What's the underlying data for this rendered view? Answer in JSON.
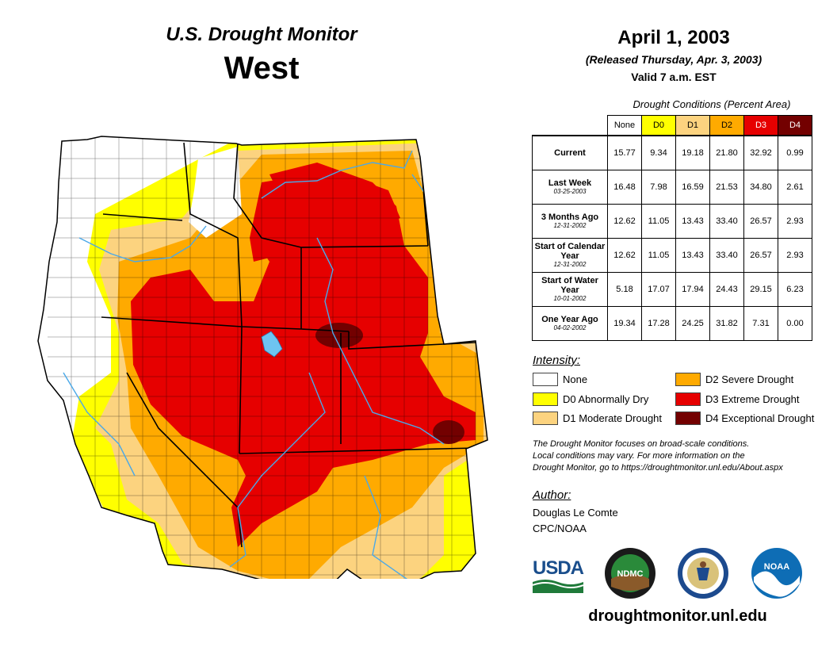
{
  "header": {
    "monitor_title": "U.S. Drought Monitor",
    "region": "West",
    "date": "April 1, 2003",
    "released": "(Released Thursday, Apr. 3, 2003)",
    "valid": "Valid 7 a.m. EST"
  },
  "table": {
    "title": "Drought Conditions (Percent Area)",
    "columns": [
      "None",
      "D0",
      "D1",
      "D2",
      "D3",
      "D4"
    ],
    "column_colors": [
      "#ffffff",
      "#ffff00",
      "#fcd37f",
      "#ffaa00",
      "#e60000",
      "#730000"
    ],
    "rows": [
      {
        "label": "Current",
        "date": "",
        "values": [
          "15.77",
          "9.34",
          "19.18",
          "21.80",
          "32.92",
          "0.99"
        ]
      },
      {
        "label": "Last Week",
        "date": "03-25-2003",
        "values": [
          "16.48",
          "7.98",
          "16.59",
          "21.53",
          "34.80",
          "2.61"
        ]
      },
      {
        "label": "3 Months Ago",
        "date": "12-31-2002",
        "values": [
          "12.62",
          "11.05",
          "13.43",
          "33.40",
          "26.57",
          "2.93"
        ]
      },
      {
        "label": "Start of Calendar Year",
        "date": "12-31-2002",
        "values": [
          "12.62",
          "11.05",
          "13.43",
          "33.40",
          "26.57",
          "2.93"
        ]
      },
      {
        "label": "Start of Water Year",
        "date": "10-01-2002",
        "values": [
          "5.18",
          "17.07",
          "17.94",
          "24.43",
          "29.15",
          "6.23"
        ]
      },
      {
        "label": "One Year Ago",
        "date": "04-02-2002",
        "values": [
          "19.34",
          "17.28",
          "24.25",
          "31.82",
          "7.31",
          "0.00"
        ]
      }
    ]
  },
  "legend": {
    "title": "Intensity:",
    "items": [
      {
        "label": "None",
        "color": "#ffffff"
      },
      {
        "label": "D0 Abnormally Dry",
        "color": "#ffff00"
      },
      {
        "label": "D1 Moderate Drought",
        "color": "#fcd37f"
      },
      {
        "label": "D2 Severe Drought",
        "color": "#ffaa00"
      },
      {
        "label": "D3 Extreme Drought",
        "color": "#e60000"
      },
      {
        "label": "D4 Exceptional Drought",
        "color": "#730000"
      }
    ]
  },
  "note": {
    "line1": "The Drought Monitor focuses on broad-scale conditions.",
    "line2": "Local conditions may vary. For more information on the",
    "line3": "Drought Monitor, go to https://droughtmonitor.unl.edu/About.aspx"
  },
  "author": {
    "heading": "Author:",
    "name": "Douglas Le Comte",
    "org": "CPC/NOAA"
  },
  "logos": {
    "usda": "USDA",
    "ndmc": "NDMC",
    "noaa": "NOAA"
  },
  "footer_url": "droughtmonitor.unl.edu"
}
